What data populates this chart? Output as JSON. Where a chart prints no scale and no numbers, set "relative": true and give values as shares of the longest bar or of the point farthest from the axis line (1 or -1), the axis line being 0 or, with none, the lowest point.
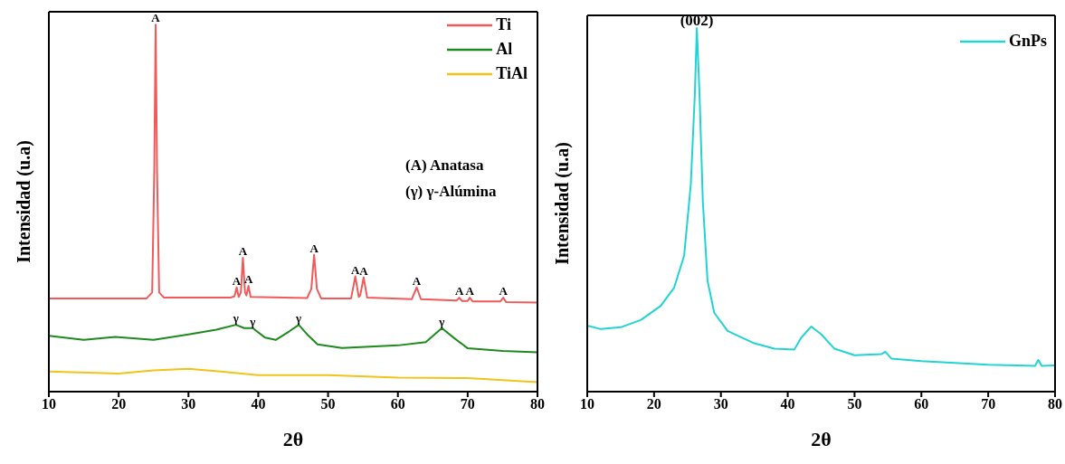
{
  "chart_data": [
    {
      "type": "line",
      "relative": true,
      "xlabel": "2θ",
      "ylabel": "Intensidad (u.a)",
      "xlim": [
        10,
        80
      ],
      "xticks": [
        10,
        20,
        30,
        40,
        50,
        60,
        70,
        80
      ],
      "legend": "top right",
      "marker": "none",
      "line_style": "solid",
      "series": [
        {
          "name": "Ti",
          "color": "#f05a5a",
          "x": [
            10,
            24,
            24.8,
            25.1,
            25.3,
            25.5,
            25.8,
            26.5,
            36,
            36.6,
            36.9,
            37.2,
            37.5,
            37.8,
            38.1,
            38.3,
            38.6,
            38.9,
            47,
            47.6,
            48,
            48.4,
            49,
            53.3,
            53.9,
            54.4,
            54.6,
            55.1,
            55.6,
            62,
            62.7,
            63.3,
            68.4,
            68.8,
            69.2,
            70,
            70.3,
            70.7,
            74.7,
            75.1,
            75.5,
            80
          ],
          "values": [
            0.254,
            0.254,
            0.27,
            0.6,
            1.0,
            0.6,
            0.27,
            0.256,
            0.256,
            0.26,
            0.284,
            0.258,
            0.27,
            0.365,
            0.27,
            0.262,
            0.288,
            0.258,
            0.255,
            0.28,
            0.373,
            0.28,
            0.254,
            0.254,
            0.314,
            0.258,
            0.262,
            0.311,
            0.256,
            0.252,
            0.284,
            0.252,
            0.248,
            0.256,
            0.247,
            0.247,
            0.256,
            0.246,
            0.246,
            0.256,
            0.244,
            0.243
          ]
        },
        {
          "name": "Al",
          "color": "#1e8a1e",
          "x": [
            10,
            15,
            19.5,
            25,
            30,
            34,
            36.8,
            38,
            39.2,
            41,
            42.5,
            44.5,
            45.8,
            47,
            48.5,
            52,
            60,
            64,
            66.3,
            68,
            70,
            75,
            80
          ],
          "values": [
            0.152,
            0.141,
            0.149,
            0.141,
            0.156,
            0.169,
            0.182,
            0.173,
            0.173,
            0.147,
            0.141,
            0.165,
            0.182,
            0.156,
            0.129,
            0.119,
            0.126,
            0.135,
            0.173,
            0.147,
            0.118,
            0.111,
            0.107
          ]
        },
        {
          "name": "TiAl",
          "color": "#f2c31a",
          "x": [
            10,
            20,
            25,
            30,
            35,
            40,
            50,
            60,
            70,
            80
          ],
          "values": [
            0.055,
            0.049,
            0.058,
            0.062,
            0.054,
            0.045,
            0.045,
            0.038,
            0.037,
            0.026
          ]
        }
      ],
      "annotations": [
        {
          "text": "A",
          "x": 25.3,
          "y": 1.0
        },
        {
          "text": "A",
          "x": 36.9,
          "y": 0.284
        },
        {
          "text": "A",
          "x": 37.8,
          "y": 0.365
        },
        {
          "text": "A",
          "x": 38.6,
          "y": 0.288
        },
        {
          "text": "A",
          "x": 48,
          "y": 0.373
        },
        {
          "text": "A",
          "x": 53.9,
          "y": 0.314
        },
        {
          "text": "A",
          "x": 55.1,
          "y": 0.311
        },
        {
          "text": "A",
          "x": 62.7,
          "y": 0.284
        },
        {
          "text": "A",
          "x": 68.8,
          "y": 0.256
        },
        {
          "text": "A",
          "x": 70.3,
          "y": 0.256
        },
        {
          "text": "A",
          "x": 75.1,
          "y": 0.256
        },
        {
          "text": "γ",
          "x": 36.8,
          "y": 0.182
        },
        {
          "text": "γ",
          "x": 39.2,
          "y": 0.173
        },
        {
          "text": "γ",
          "x": 45.8,
          "y": 0.182
        },
        {
          "text": "γ",
          "x": 66.3,
          "y": 0.173
        },
        "(A) Anatasa",
        "(γ) γ-Alúmina"
      ]
    },
    {
      "type": "line",
      "relative": true,
      "xlabel": "2θ",
      "ylabel": "Intensidad (u.a)",
      "xlim": [
        10,
        80
      ],
      "xticks": [
        10,
        20,
        30,
        40,
        50,
        60,
        70,
        80
      ],
      "legend": "top right",
      "marker": "none",
      "line_style": "solid",
      "series": [
        {
          "name": "GnPs",
          "color": "#22d3d3",
          "x": [
            10,
            12,
            15,
            18,
            21,
            23,
            24.5,
            25.5,
            26.1,
            26.4,
            26.8,
            27.3,
            28,
            29,
            31,
            35,
            38,
            41,
            42,
            43.5,
            45,
            47,
            50,
            54,
            54.6,
            55.5,
            60,
            70,
            77,
            77.5,
            78,
            80
          ],
          "values": [
            0.182,
            0.172,
            0.177,
            0.197,
            0.236,
            0.286,
            0.374,
            0.571,
            0.818,
            1.0,
            0.818,
            0.522,
            0.305,
            0.217,
            0.167,
            0.133,
            0.118,
            0.116,
            0.148,
            0.179,
            0.158,
            0.118,
            0.1,
            0.103,
            0.11,
            0.091,
            0.084,
            0.074,
            0.071,
            0.087,
            0.071,
            0.072
          ]
        }
      ],
      "annotations": [
        {
          "text": "(002)",
          "x": 26.4,
          "y": 1.0
        }
      ]
    }
  ]
}
